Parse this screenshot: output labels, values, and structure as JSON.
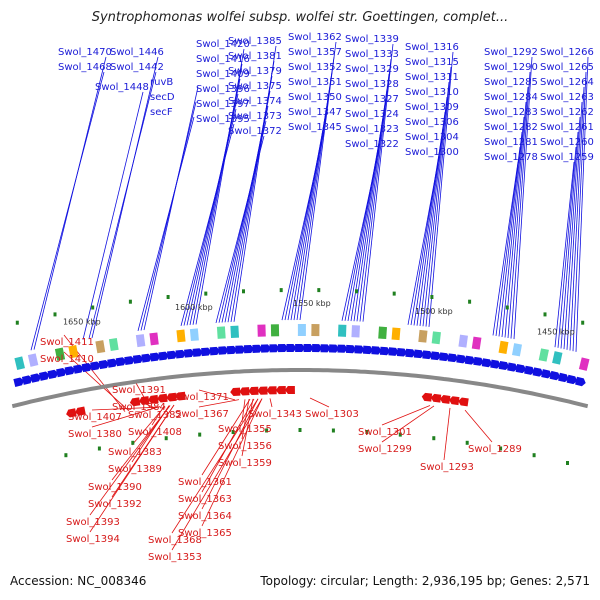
{
  "title": "Syntrophomonas wolfei subsp. wolfei str. Goettingen, complet...",
  "accession": "Accession: NC_008346",
  "topology": "Topology: circular; Length: 2,936,195 bp; Genes: 2,571",
  "kbp_labels": [
    {
      "text": "1650 kbp"
    },
    {
      "text": "1600 kbp"
    },
    {
      "text": "1550 kbp"
    },
    {
      "text": "1500 kbp"
    },
    {
      "text": "1450 kbp"
    }
  ],
  "top_labels": [
    "Swol_1470",
    "Swol_1468",
    "Swol_1446",
    "Swol_1442",
    "Swol_1448",
    "ruvB",
    "secD",
    "secF",
    "Swol_1420",
    "Swol_1416",
    "Swol_1409",
    "Swol_1396",
    "Swol_1397",
    "Swol_1395",
    "Swol_1385",
    "Swol_1381",
    "Swol_1379",
    "Swol_1375",
    "Swol_1374",
    "Swol_1373",
    "Swol_1372",
    "Swol_1362",
    "Swol_1357",
    "Swol_1352",
    "Swol_1351",
    "Swol_1350",
    "Swol_1347",
    "Swol_1345",
    "Swol_1339",
    "Swol_1333",
    "Swol_1329",
    "Swol_1328",
    "Swol_1327",
    "Swol_1324",
    "Swol_1323",
    "Swol_1322",
    "Swol_1316",
    "Swol_1315",
    "Swol_1311",
    "Swol_1310",
    "Swol_1309",
    "Swol_1306",
    "Swol_1304",
    "Swol_1300",
    "Swol_1292",
    "Swol_1290",
    "Swol_1285",
    "Swol_1284",
    "Swol_1283",
    "Swol_1282",
    "Swol_1281",
    "Swol_1278",
    "Swol_1266",
    "Swol_1265",
    "Swol_1264",
    "Swol_1263",
    "Swol_1262",
    "Swol_1261",
    "Swol_1260",
    "Swol_1259"
  ],
  "bottom_labels": [
    "Swol_1411",
    "Swol_1410",
    "Swol_1391",
    "Swol_1384",
    "Swol_1407",
    "Swol_1380",
    "Swol_1382",
    "Swol_1408",
    "Swol_1383",
    "Swol_1389",
    "Swol_1390",
    "Swol_1392",
    "Swol_1393",
    "Swol_1394",
    "Swol_1371",
    "Swol_1367",
    "Swol_1355",
    "Swol_1356",
    "Swol_1359",
    "Swol_1361",
    "Swol_1363",
    "Swol_1364",
    "Swol_1365",
    "Swol_1368",
    "Swol_1353",
    "Swol_1343",
    "Swol_1303",
    "Swol_1301",
    "Swol_1299",
    "Swol_1293",
    "Swol_1289"
  ],
  "colors": {
    "forward": "#1010e0",
    "reverse": "#e01010",
    "backbone": "#888888",
    "rna": "#208020"
  }
}
